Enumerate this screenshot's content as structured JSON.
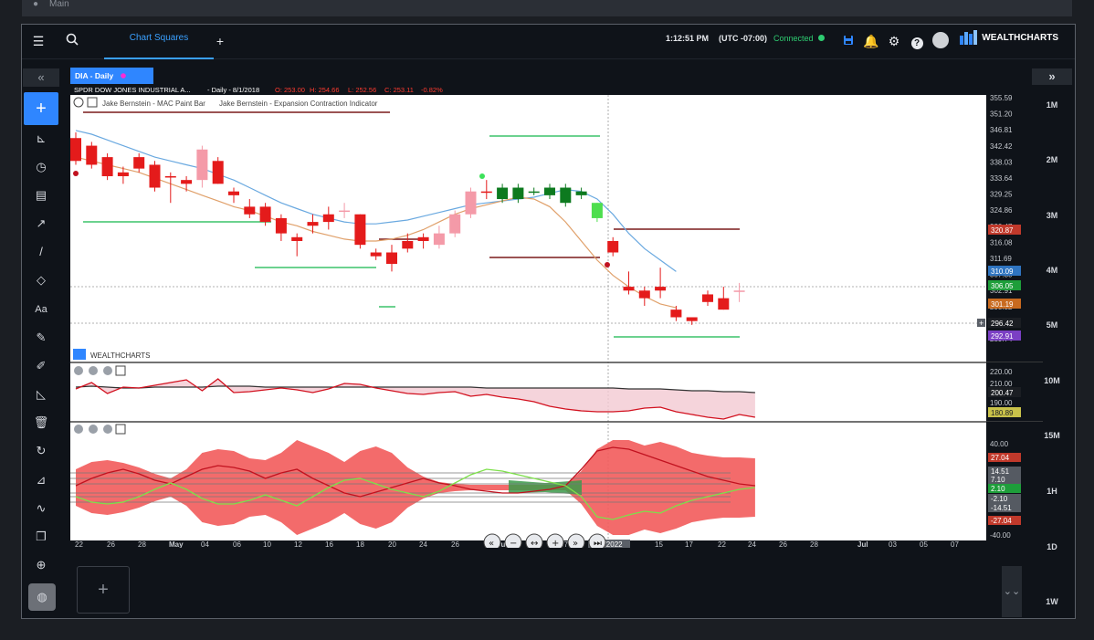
{
  "top_strip": {
    "label": "Main"
  },
  "header": {
    "menu_icon": "menu-icon",
    "search_icon": "search-icon",
    "tab_label": "Chart Squares",
    "add_tab": "+",
    "time": "1:12:51 PM",
    "timezone": "(UTC -07:00)",
    "status": "Connected",
    "brand": "WEALTHCHARTS"
  },
  "left_toolbar": [
    {
      "name": "collapse-left-icon",
      "glyph": "«"
    },
    {
      "name": "add-icon",
      "glyph": "+"
    },
    {
      "name": "indicators-icon",
      "glyph": "⊾"
    },
    {
      "name": "clock-icon",
      "glyph": "◷"
    },
    {
      "name": "calendar-icon",
      "glyph": "▤"
    },
    {
      "name": "trend-icon",
      "glyph": "↗"
    },
    {
      "name": "line-icon",
      "glyph": "/"
    },
    {
      "name": "shapes-icon",
      "glyph": "◇"
    },
    {
      "name": "text-icon",
      "glyph": "Aa"
    },
    {
      "name": "pen-icon",
      "glyph": "✎"
    },
    {
      "name": "ruler-icon",
      "glyph": "✐"
    },
    {
      "name": "measure-icon",
      "glyph": "◺"
    },
    {
      "name": "trash-icon",
      "glyph": "🗑"
    },
    {
      "name": "refresh-icon",
      "glyph": "↻"
    },
    {
      "name": "chart-icon",
      "glyph": "⊿"
    },
    {
      "name": "curve-icon",
      "glyph": "∿"
    },
    {
      "name": "copy-icon",
      "glyph": "❐"
    },
    {
      "name": "crosshair-icon",
      "glyph": "⊕"
    },
    {
      "name": "globe-icon",
      "glyph": "◍"
    }
  ],
  "right_toolbar": {
    "expand": "»",
    "intervals": [
      "1M",
      "2M",
      "3M",
      "4M",
      "5M",
      "10M",
      "15M",
      "1H",
      "1D",
      "1W"
    ]
  },
  "chart": {
    "symbol_tab": "DIA - Daily",
    "legend_name": "SPDR DOW JONES INDUSTRIAL A...",
    "legend_interval": "- Daily - 8/1/2018",
    "legend_o": "O: 253.00",
    "legend_h": "H: 254.66",
    "legend_l": "L: 252.56",
    "legend_c": "C: 253.11",
    "legend_chg": "-0.82%",
    "indicator1": "Jake Bernstein - MAC Paint Bar",
    "indicator2": "Jake Bernstein - Expansion Contraction Indicator",
    "watermark": "WEALTHCHARTS",
    "date_badge": "6/10/2022"
  },
  "chart_data": {
    "type": "candlestick",
    "price_axis_ticks": [
      "355.59",
      "351.20",
      "346.81",
      "342.42",
      "338.03",
      "333.64",
      "329.25",
      "324.86",
      "320.47",
      "316.08",
      "311.69",
      "307.30",
      "302.91",
      "298.52",
      "294.13",
      "289.74"
    ],
    "price_labels": [
      {
        "value": "320.87",
        "color": "#c0392b"
      },
      {
        "value": "310.09",
        "color": "#2f74c0"
      },
      {
        "value": "306.05",
        "color": "#1e9e3a"
      },
      {
        "value": "301.19",
        "color": "#c86a1f"
      },
      {
        "value": "296.42",
        "color": "#1b1e23"
      },
      {
        "value": "292.91",
        "color": "#7b3fc4"
      }
    ],
    "osc1_ticks": [
      "220.00",
      "210.00",
      "190.00"
    ],
    "osc1_labels": [
      {
        "value": "200.47",
        "color": "#1b1e23"
      },
      {
        "value": "180.89",
        "color": "#c9c24a"
      }
    ],
    "osc2_ticks": [
      "40.00",
      "-40.00"
    ],
    "osc2_labels": [
      {
        "value": "27.04",
        "color": "#c0392b"
      },
      {
        "value": "14.51",
        "color": "#555a62"
      },
      {
        "value": "7.10",
        "color": "#555a62"
      },
      {
        "value": "2.10",
        "color": "#1e9e3a"
      },
      {
        "value": "-2.10",
        "color": "#555a62"
      },
      {
        "value": "-14.51",
        "color": "#555a62"
      },
      {
        "value": "-27.04",
        "color": "#c0392b"
      }
    ],
    "x_ticks": [
      "22",
      "26",
      "28",
      "May",
      "04",
      "06",
      "10",
      "12",
      "16",
      "18",
      "20",
      "24",
      "26",
      "Jun",
      "03",
      "07",
      "6/10/2022",
      "15",
      "17",
      "22",
      "24",
      "26",
      "28",
      "Jul",
      "03",
      "05",
      "07"
    ],
    "candles": [
      {
        "o": 345,
        "h": 346.5,
        "l": 338,
        "c": 339,
        "col": "#e41b1b"
      },
      {
        "o": 343,
        "h": 344,
        "l": 337,
        "c": 338,
        "col": "#e41b1b"
      },
      {
        "o": 340,
        "h": 341,
        "l": 334,
        "c": 335,
        "col": "#e41b1b"
      },
      {
        "o": 336,
        "h": 337.5,
        "l": 333,
        "c": 335,
        "col": "#e41b1b"
      },
      {
        "o": 340,
        "h": 341,
        "l": 336,
        "c": 337,
        "col": "#e41b1b"
      },
      {
        "o": 338,
        "h": 339,
        "l": 331,
        "c": 332,
        "col": "#e41b1b"
      },
      {
        "o": 335,
        "h": 336,
        "l": 328,
        "c": 335,
        "col": "#e41b1b"
      },
      {
        "o": 334,
        "h": 335,
        "l": 331,
        "c": 333,
        "col": "#e41b1b"
      },
      {
        "o": 334,
        "h": 343,
        "l": 332,
        "c": 342,
        "col": "#f49aa8"
      },
      {
        "o": 339,
        "h": 340,
        "l": 333,
        "c": 333,
        "col": "#e41b1b"
      },
      {
        "o": 331,
        "h": 332,
        "l": 328,
        "c": 330,
        "col": "#e41b1b"
      },
      {
        "o": 327,
        "h": 329,
        "l": 324,
        "c": 325,
        "col": "#e41b1b"
      },
      {
        "o": 327,
        "h": 328,
        "l": 322,
        "c": 323,
        "col": "#e41b1b"
      },
      {
        "o": 324,
        "h": 325,
        "l": 318,
        "c": 320,
        "col": "#e41b1b"
      },
      {
        "o": 319,
        "h": 320,
        "l": 314,
        "c": 318,
        "col": "#e41b1b"
      },
      {
        "o": 322,
        "h": 325,
        "l": 320,
        "c": 323,
        "col": "#e41b1b"
      },
      {
        "o": 325,
        "h": 327,
        "l": 321,
        "c": 323,
        "col": "#e41b1b"
      },
      {
        "o": 326,
        "h": 328,
        "l": 324,
        "c": 326,
        "col": "#f49aa8"
      },
      {
        "o": 325,
        "h": 325,
        "l": 316,
        "c": 317,
        "col": "#e41b1b"
      },
      {
        "o": 315,
        "h": 316,
        "l": 313,
        "c": 314,
        "col": "#e41b1b"
      },
      {
        "o": 315,
        "h": 317,
        "l": 310,
        "c": 312,
        "col": "#e41b1b"
      },
      {
        "o": 318,
        "h": 320,
        "l": 315,
        "c": 316,
        "col": "#e41b1b"
      },
      {
        "o": 318,
        "h": 320,
        "l": 316,
        "c": 319,
        "col": "#e41b1b"
      },
      {
        "o": 317,
        "h": 322,
        "l": 316,
        "c": 320,
        "col": "#f49aa8"
      },
      {
        "o": 320,
        "h": 326,
        "l": 319,
        "c": 325,
        "col": "#f49aa8"
      },
      {
        "o": 325,
        "h": 332,
        "l": 324,
        "c": 331,
        "col": "#f49aa8"
      },
      {
        "o": 331,
        "h": 334,
        "l": 329,
        "c": 331,
        "col": "#e41b1b"
      },
      {
        "o": 329,
        "h": 333,
        "l": 328,
        "c": 332,
        "col": "#0d7a1f"
      },
      {
        "o": 329,
        "h": 333,
        "l": 328,
        "c": 332,
        "col": "#0d7a1f"
      },
      {
        "o": 331,
        "h": 332,
        "l": 330,
        "c": 331,
        "col": "#0d7a1f"
      },
      {
        "o": 330,
        "h": 333,
        "l": 329,
        "c": 332,
        "col": "#0d7a1f"
      },
      {
        "o": 328,
        "h": 333,
        "l": 327,
        "c": 332,
        "col": "#0d7a1f"
      },
      {
        "o": 330,
        "h": 332,
        "l": 329,
        "c": 331,
        "col": "#0d7a1f"
      },
      {
        "o": 328,
        "h": 328,
        "l": 323,
        "c": 324,
        "col": "#4ede4e"
      },
      {
        "o": 318,
        "h": 319,
        "l": 314,
        "c": 315,
        "col": "#e41b1b"
      },
      {
        "o": 306,
        "h": 310,
        "l": 304,
        "c": 305,
        "col": "#e41b1b"
      },
      {
        "o": 305,
        "h": 306,
        "l": 301,
        "c": 303,
        "col": "#e41b1b"
      },
      {
        "o": 306,
        "h": 311,
        "l": 303,
        "c": 305,
        "col": "#e41b1b"
      },
      {
        "o": 300,
        "h": 301,
        "l": 297,
        "c": 298,
        "col": "#e41b1b"
      },
      {
        "o": 298,
        "h": 298,
        "l": 296,
        "c": 297,
        "col": "#e41b1b"
      },
      {
        "o": 304,
        "h": 305,
        "l": 301,
        "c": 302,
        "col": "#e41b1b"
      },
      {
        "o": 303,
        "h": 306,
        "l": 300,
        "c": 300,
        "col": "#e41b1b"
      },
      {
        "o": 305,
        "h": 307,
        "l": 302,
        "c": 305,
        "col": "#f49aa8"
      }
    ],
    "ma_fast": [
      347,
      346,
      344.5,
      343,
      341.5,
      340,
      339,
      338,
      337,
      335.5,
      334,
      332,
      330,
      328,
      326.5,
      325,
      324,
      323,
      322.5,
      322.5,
      323,
      323.5,
      324.5,
      325.5,
      326.5,
      327.5,
      328,
      328.5,
      329,
      329.5,
      330.5,
      331.5,
      331,
      329,
      325,
      320,
      316,
      313,
      310
    ],
    "ma_slow": [
      340,
      339,
      338,
      337,
      336,
      334.5,
      333,
      331.5,
      330,
      328.5,
      327,
      326,
      324.5,
      323,
      322,
      320.5,
      319.5,
      318.5,
      318,
      318,
      318.5,
      319.5,
      321,
      323,
      325,
      326.5,
      327.5,
      328.5,
      329.5,
      329,
      327,
      323,
      318,
      313,
      309,
      306,
      303.5,
      301.5,
      300.5
    ]
  },
  "nav_controls": [
    "«",
    "−",
    "↔",
    "+",
    "»",
    "⏭"
  ],
  "bottom": {
    "add_label": "+",
    "collapse_label": "⌄⌄"
  }
}
